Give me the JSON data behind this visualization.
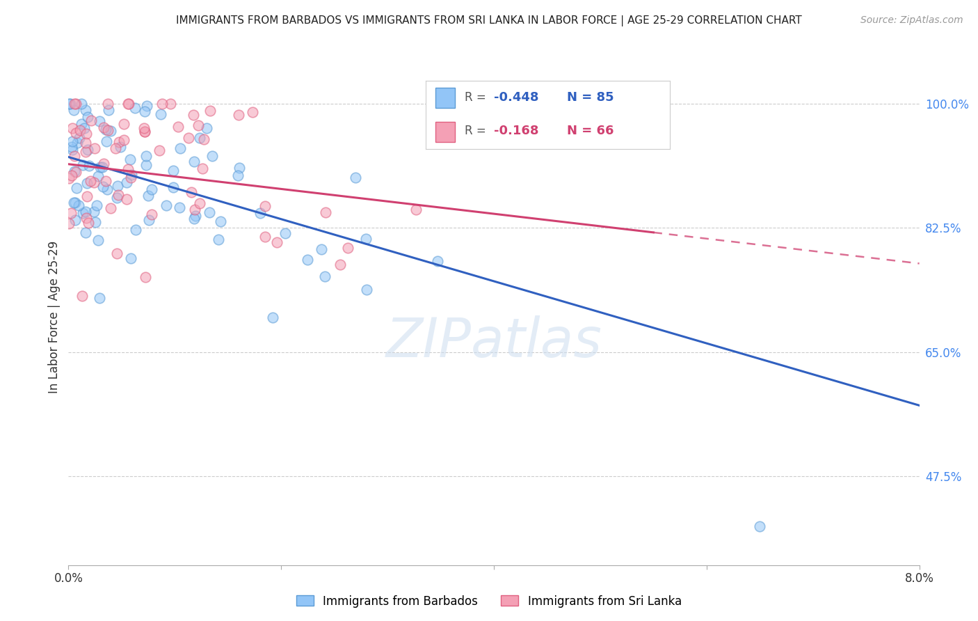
{
  "title": "IMMIGRANTS FROM BARBADOS VS IMMIGRANTS FROM SRI LANKA IN LABOR FORCE | AGE 25-29 CORRELATION CHART",
  "source": "Source: ZipAtlas.com",
  "ylabel": "In Labor Force | Age 25-29",
  "yticks": [
    100.0,
    82.5,
    65.0,
    47.5
  ],
  "ytick_labels": [
    "100.0%",
    "82.5%",
    "65.0%",
    "47.5%"
  ],
  "xlim": [
    0.0,
    8.0
  ],
  "ylim": [
    35.0,
    105.0
  ],
  "xtick_positions": [
    0.0,
    2.0,
    4.0,
    6.0,
    8.0
  ],
  "barbados_color": "#92C5F7",
  "barbados_edge_color": "#5B9BD5",
  "srilanka_color": "#F4A0B5",
  "srilanka_edge_color": "#E06080",
  "reg_barbados_color": "#3060C0",
  "reg_srilanka_color": "#D04070",
  "barbados_R": -0.448,
  "barbados_N": 85,
  "srilanka_R": -0.168,
  "srilanka_N": 66,
  "reg_barbados_x0": 0.0,
  "reg_barbados_y0": 92.5,
  "reg_barbados_x1": 8.0,
  "reg_barbados_y1": 57.5,
  "reg_srilanka_x0": 0.0,
  "reg_srilanka_y0": 91.5,
  "reg_srilanka_x1": 8.0,
  "reg_srilanka_y1": 77.5,
  "reg_srilanka_solid_end": 5.5,
  "watermark": "ZIPatlas",
  "legend_R_label": "R = ",
  "legend_N_label": "N = ",
  "barbados_label": "Immigrants from Barbados",
  "srilanka_label": "Immigrants from Sri Lanka"
}
